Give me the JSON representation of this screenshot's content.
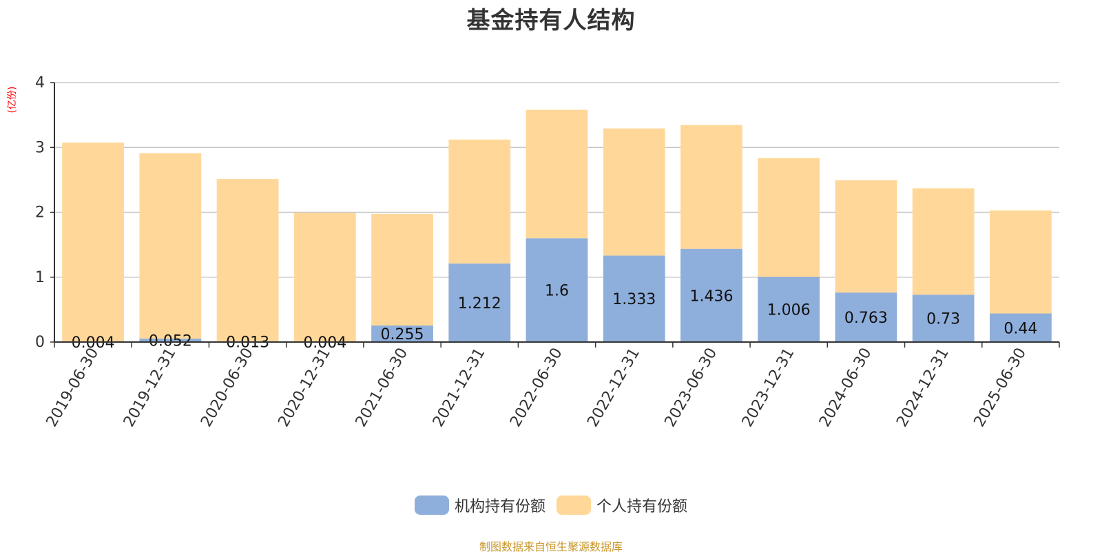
{
  "chart_data": {
    "type": "bar",
    "stacked": true,
    "title": "基金持有人结构",
    "ylabel": "(亿份)",
    "ylim": [
      0,
      4
    ],
    "yticks": [
      "0",
      "1",
      "2",
      "3",
      "4"
    ],
    "grid": true,
    "legend_position": "bottom",
    "categories": [
      "2019-06-30",
      "2019-12-31",
      "2020-06-30",
      "2020-12-31",
      "2021-06-30",
      "2021-12-31",
      "2022-06-30",
      "2022-12-31",
      "2023-06-30",
      "2023-12-31",
      "2024-06-30",
      "2024-12-31",
      "2025-06-30"
    ],
    "series": [
      {
        "name": "机构持有份额",
        "color": "#8eaedb",
        "values": [
          0.004,
          0.052,
          0.013,
          0.004,
          0.255,
          1.212,
          1.6,
          1.333,
          1.436,
          1.006,
          0.763,
          0.73,
          0.44
        ],
        "labels": [
          "0.004",
          "0.052",
          "0.013",
          "0.004",
          "0.255",
          "1.212",
          "1.6",
          "1.333",
          "1.436",
          "1.006",
          "0.763",
          "0.73",
          "0.44"
        ]
      },
      {
        "name": "个人持有份额",
        "color": "#ffd899",
        "values": [
          3.07,
          2.86,
          2.5,
          1.99,
          1.72,
          1.91,
          1.98,
          1.96,
          1.91,
          1.83,
          1.73,
          1.64,
          1.59
        ]
      }
    ]
  },
  "source": "制图数据来自恒生聚源数据库"
}
